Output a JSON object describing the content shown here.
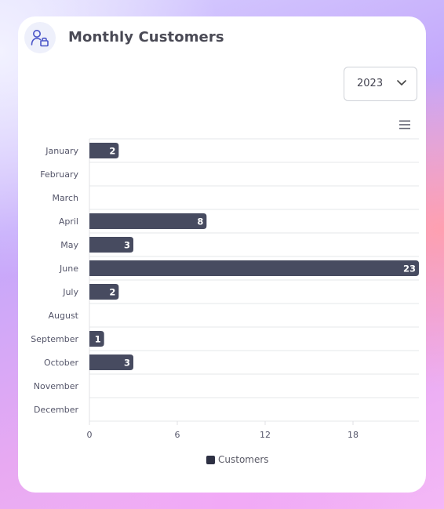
{
  "header": {
    "title": "Monthly Customers",
    "icon": "user-lock-icon"
  },
  "year_select": {
    "value": "2023"
  },
  "colors": {
    "bar": "#474b60",
    "legend_swatch": "#2d3043",
    "icon": "#4a55c8"
  },
  "chart_data": {
    "type": "bar",
    "orientation": "horizontal",
    "categories": [
      "January",
      "February",
      "March",
      "April",
      "May",
      "June",
      "July",
      "August",
      "September",
      "October",
      "November",
      "December"
    ],
    "series": [
      {
        "name": "Customers",
        "values": [
          2,
          0,
          0,
          8,
          3,
          23,
          2,
          0,
          1,
          3,
          0,
          0
        ]
      }
    ],
    "xlim": [
      0,
      22.5
    ],
    "xticks": [
      0,
      6,
      12,
      18
    ],
    "grid": true,
    "legend": "bottom"
  }
}
